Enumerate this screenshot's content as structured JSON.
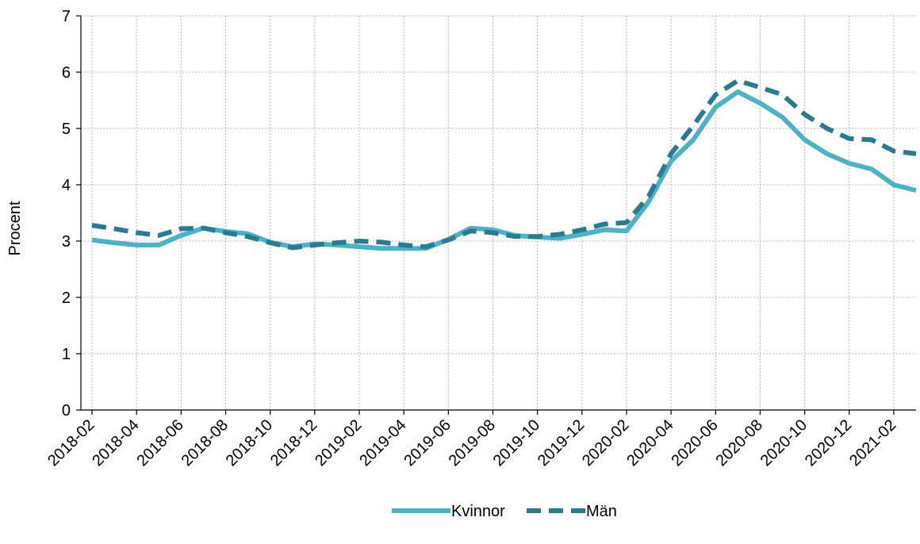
{
  "chart_data": {
    "type": "line",
    "title": "",
    "xlabel": "",
    "ylabel": "Procent",
    "ylim": [
      0,
      7
    ],
    "yticks": [
      0,
      1,
      2,
      3,
      4,
      5,
      6,
      7
    ],
    "x": [
      "2018-02",
      "2018-03",
      "2018-04",
      "2018-05",
      "2018-06",
      "2018-07",
      "2018-08",
      "2018-09",
      "2018-10",
      "2018-11",
      "2018-12",
      "2019-01",
      "2019-02",
      "2019-03",
      "2019-04",
      "2019-05",
      "2019-06",
      "2019-07",
      "2019-08",
      "2019-09",
      "2019-10",
      "2019-11",
      "2019-12",
      "2020-01",
      "2020-02",
      "2020-03",
      "2020-04",
      "2020-05",
      "2020-06",
      "2020-07",
      "2020-08",
      "2020-09",
      "2020-10",
      "2020-11",
      "2020-12",
      "2021-01",
      "2021-02",
      "2021-03"
    ],
    "x_tick_labels": [
      "2018-02",
      "2018-04",
      "2018-06",
      "2018-08",
      "2018-10",
      "2018-12",
      "2019-02",
      "2019-04",
      "2019-06",
      "2019-08",
      "2019-10",
      "2019-12",
      "2020-02",
      "2020-04",
      "2020-06",
      "2020-08",
      "2020-10",
      "2020-12",
      "2021-02"
    ],
    "grid": true,
    "legend_position": "bottom",
    "series": [
      {
        "name": "Kvinnor",
        "color": "#4cb2c6",
        "style": "solid",
        "values": [
          3.02,
          2.97,
          2.93,
          2.93,
          3.1,
          3.23,
          3.17,
          3.13,
          2.98,
          2.9,
          2.95,
          2.93,
          2.9,
          2.87,
          2.87,
          2.87,
          3.03,
          3.23,
          3.2,
          3.1,
          3.07,
          3.05,
          3.12,
          3.2,
          3.18,
          3.7,
          4.42,
          4.8,
          5.38,
          5.65,
          5.45,
          5.2,
          4.8,
          4.55,
          4.38,
          4.28,
          4.0,
          3.9
        ]
      },
      {
        "name": "Män",
        "color": "#2a7b92",
        "style": "dashed",
        "values": [
          3.28,
          3.22,
          3.15,
          3.1,
          3.22,
          3.23,
          3.15,
          3.08,
          2.97,
          2.88,
          2.93,
          2.97,
          3.0,
          2.98,
          2.93,
          2.9,
          3.02,
          3.18,
          3.15,
          3.08,
          3.08,
          3.12,
          3.2,
          3.3,
          3.33,
          3.8,
          4.55,
          5.05,
          5.6,
          5.85,
          5.73,
          5.6,
          5.25,
          5.0,
          4.82,
          4.8,
          4.6,
          4.55
        ]
      }
    ]
  }
}
